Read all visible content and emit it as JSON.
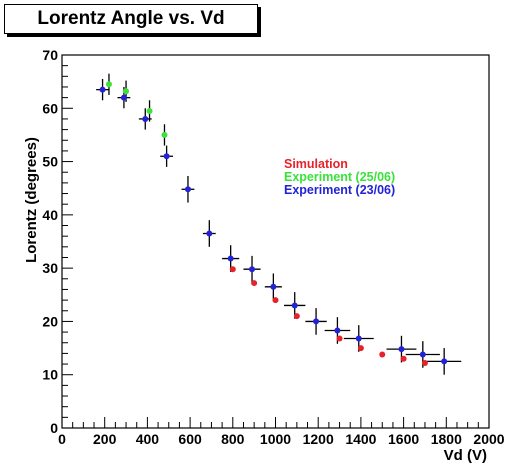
{
  "chart_data": {
    "type": "scatter",
    "title": "Lorentz Angle vs. Vd",
    "xlabel": "Vd (V)",
    "ylabel": "Lorentz (degrees)",
    "xlim": [
      0,
      2000
    ],
    "ylim": [
      0,
      70
    ],
    "x_ticks": [
      "0",
      "200",
      "400",
      "600",
      "800",
      "1000",
      "1200",
      "1400",
      "1600",
      "1800",
      "2000"
    ],
    "y_ticks": [
      "0",
      "10",
      "20",
      "30",
      "40",
      "50",
      "60",
      "70"
    ],
    "series": [
      {
        "name": "Simulation",
        "color": "#e8222a",
        "points": [
          {
            "x": 800,
            "y": 29.8
          },
          {
            "x": 900,
            "y": 27.2
          },
          {
            "x": 1000,
            "y": 24.0
          },
          {
            "x": 1100,
            "y": 21.0
          },
          {
            "x": 1300,
            "y": 16.8
          },
          {
            "x": 1400,
            "y": 15.0
          },
          {
            "x": 1500,
            "y": 13.8
          },
          {
            "x": 1600,
            "y": 13.0
          },
          {
            "x": 1700,
            "y": 12.2
          }
        ]
      },
      {
        "name": "Experiment (25/06)",
        "color": "#3ae23a",
        "points": [
          {
            "x": 220,
            "y": 64.5,
            "yerr": 2.0
          },
          {
            "x": 300,
            "y": 63.2,
            "yerr": 2.0
          },
          {
            "x": 410,
            "y": 59.5,
            "yerr": 2.0
          },
          {
            "x": 480,
            "y": 55.0,
            "yerr": 2.0
          }
        ]
      },
      {
        "name": "Experiment (23/06)",
        "color": "#2222d8",
        "points": [
          {
            "x": 190,
            "y": 63.5,
            "xerr": 30,
            "yerr": 2.0
          },
          {
            "x": 290,
            "y": 62.0,
            "xerr": 30,
            "yerr": 2.0
          },
          {
            "x": 390,
            "y": 58.0,
            "xerr": 30,
            "yerr": 2.0
          },
          {
            "x": 490,
            "y": 51.0,
            "xerr": 30,
            "yerr": 2.0
          },
          {
            "x": 590,
            "y": 44.8,
            "xerr": 30,
            "yerr": 2.5
          },
          {
            "x": 690,
            "y": 36.5,
            "xerr": 30,
            "yerr": 2.5
          },
          {
            "x": 790,
            "y": 31.8,
            "xerr": 40,
            "yerr": 2.5
          },
          {
            "x": 890,
            "y": 29.8,
            "xerr": 40,
            "yerr": 2.5
          },
          {
            "x": 990,
            "y": 26.5,
            "xerr": 40,
            "yerr": 2.5
          },
          {
            "x": 1090,
            "y": 23.0,
            "xerr": 50,
            "yerr": 2.5
          },
          {
            "x": 1190,
            "y": 20.0,
            "xerr": 50,
            "yerr": 2.5
          },
          {
            "x": 1290,
            "y": 18.3,
            "xerr": 60,
            "yerr": 2.5
          },
          {
            "x": 1390,
            "y": 16.8,
            "xerr": 70,
            "yerr": 2.5
          },
          {
            "x": 1590,
            "y": 14.8,
            "xerr": 70,
            "yerr": 2.5
          },
          {
            "x": 1690,
            "y": 13.8,
            "xerr": 80,
            "yerr": 2.5
          },
          {
            "x": 1790,
            "y": 12.5,
            "xerr": 80,
            "yerr": 2.5
          }
        ]
      }
    ],
    "legend": {
      "placement": "right",
      "entries": [
        "Simulation",
        "Experiment (25/06)",
        "Experiment (23/06)"
      ]
    },
    "grid": false,
    "frame_color": "#000000",
    "error_bar_color": "#000000"
  }
}
